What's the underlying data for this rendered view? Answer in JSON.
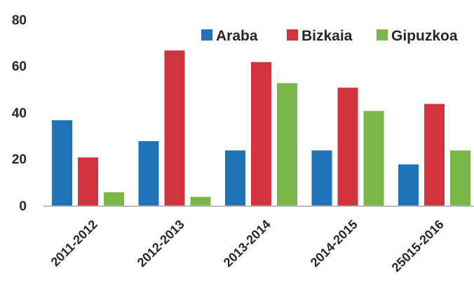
{
  "chart_data": {
    "type": "bar",
    "categories": [
      "2011-2012",
      "2012-2013",
      "2013-2014",
      "2014-2015",
      "25015-2016"
    ],
    "series": [
      {
        "name": "Araba",
        "color": "#1f73b7",
        "values": [
          37,
          28,
          24,
          24,
          18
        ]
      },
      {
        "name": "Bizkaia",
        "color": "#d2343e",
        "values": [
          21,
          67,
          62,
          51,
          44
        ]
      },
      {
        "name": "Gipuzkoa",
        "color": "#7ab648",
        "values": [
          6,
          4,
          53,
          41,
          24
        ]
      }
    ],
    "y_ticks": [
      "0",
      "20",
      "40",
      "60",
      "80"
    ],
    "ylim": [
      0,
      80
    ],
    "grid": false,
    "legend_position": "top-right"
  }
}
